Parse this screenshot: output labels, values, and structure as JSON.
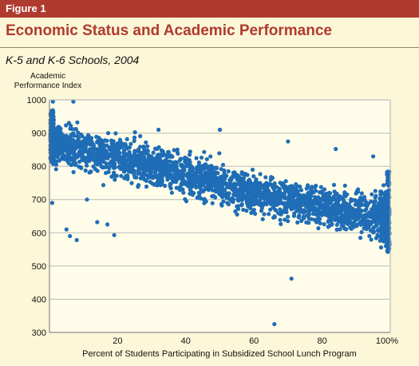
{
  "figure": {
    "label": "Figure 1",
    "title": "Economic Status and Academic Performance",
    "subtitle": "K-5 and K-6 Schools, 2004"
  },
  "colors": {
    "accent": "#B03A2E",
    "background": "#FCF7D8",
    "plot_background": "#FFFDE9",
    "points": "#1F6DB6",
    "grid": "#B9B9B9"
  },
  "chart_data": {
    "type": "scatter",
    "title": "Economic Status and Academic Performance",
    "subtitle": "K-5 and K-6 Schools, 2004",
    "ylabel_lines": [
      "Academic",
      "Performance Index"
    ],
    "xlabel": "Percent of Students Participating in Subsidized School Lunch Program",
    "xlim": [
      0,
      100
    ],
    "ylim": [
      300,
      1000
    ],
    "x_ticks": [
      {
        "value": 20,
        "label": "20"
      },
      {
        "value": 40,
        "label": "40"
      },
      {
        "value": 60,
        "label": "60"
      },
      {
        "value": 80,
        "label": "80"
      },
      {
        "value": 100,
        "label": "100%"
      }
    ],
    "y_ticks": [
      {
        "value": 300,
        "label": "300"
      },
      {
        "value": 400,
        "label": "400"
      },
      {
        "value": 500,
        "label": "500"
      },
      {
        "value": 600,
        "label": "600"
      },
      {
        "value": 700,
        "label": "700"
      },
      {
        "value": 800,
        "label": "800"
      },
      {
        "value": 900,
        "label": "900"
      },
      {
        "value": 1000,
        "label": "1000"
      }
    ],
    "grid": "horizontal",
    "legend": "none",
    "trend": {
      "description": "dense band; approx. center",
      "points": [
        {
          "x": 0,
          "y": 875
        },
        {
          "x": 20,
          "y": 825
        },
        {
          "x": 40,
          "y": 775
        },
        {
          "x": 60,
          "y": 720
        },
        {
          "x": 80,
          "y": 680
        },
        {
          "x": 100,
          "y": 645
        }
      ],
      "spread": 55
    },
    "outliers": [
      {
        "x": 0.8,
        "y": 690
      },
      {
        "x": 1,
        "y": 995
      },
      {
        "x": 5,
        "y": 610
      },
      {
        "x": 6,
        "y": 590
      },
      {
        "x": 7,
        "y": 995
      },
      {
        "x": 8,
        "y": 578
      },
      {
        "x": 11,
        "y": 700
      },
      {
        "x": 14,
        "y": 632
      },
      {
        "x": 17,
        "y": 625
      },
      {
        "x": 19,
        "y": 593
      },
      {
        "x": 32,
        "y": 910
      },
      {
        "x": 50,
        "y": 910
      },
      {
        "x": 66,
        "y": 325
      },
      {
        "x": 71,
        "y": 462
      },
      {
        "x": 70,
        "y": 875
      },
      {
        "x": 84,
        "y": 852
      },
      {
        "x": 95,
        "y": 830
      }
    ]
  }
}
